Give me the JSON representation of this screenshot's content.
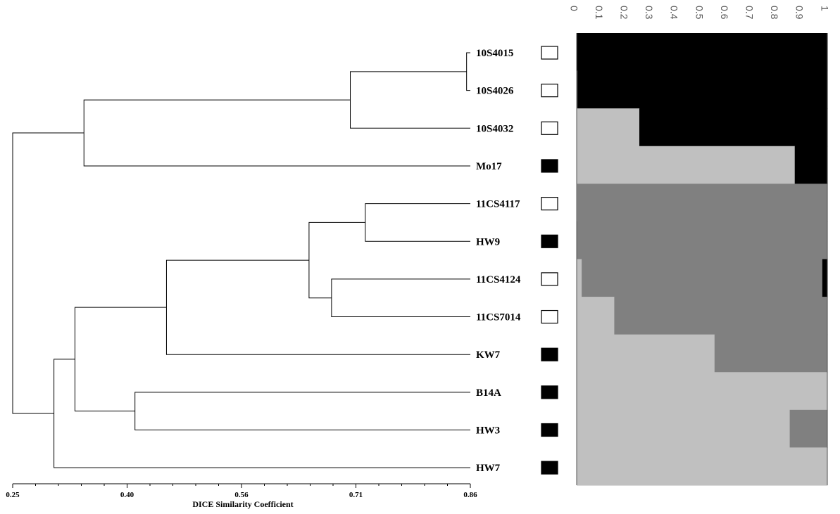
{
  "chart_data": [
    {
      "type": "dendrogram",
      "xlabel": "DICE Similarity Coefficient",
      "xlim": [
        0.25,
        0.86
      ],
      "ticks": [
        "0.25",
        "0.40",
        "0.56",
        "0.71",
        "0.86"
      ],
      "leaves": [
        {
          "label": "10S4015",
          "marker": "open"
        },
        {
          "label": "10S4026",
          "marker": "open"
        },
        {
          "label": "10S4032",
          "marker": "open"
        },
        {
          "label": "Mo17",
          "marker": "filled"
        },
        {
          "label": "11CS4117",
          "marker": "open"
        },
        {
          "label": "HW9",
          "marker": "filled"
        },
        {
          "label": "11CS4124",
          "marker": "open"
        },
        {
          "label": "11CS7014",
          "marker": "open"
        },
        {
          "label": "KW7",
          "marker": "filled"
        },
        {
          "label": "B14A",
          "marker": "filled"
        },
        {
          "label": "HW3",
          "marker": "filled"
        },
        {
          "label": "HW7",
          "marker": "filled"
        }
      ],
      "merges": [
        {
          "a": "L0",
          "b": "L1",
          "height": 0.855,
          "id": "n1"
        },
        {
          "a": "n1",
          "b": "L2",
          "height": 0.7,
          "id": "n2"
        },
        {
          "a": "n2",
          "b": "L3",
          "height": 0.345,
          "id": "n3"
        },
        {
          "a": "L4",
          "b": "L5",
          "height": 0.72,
          "id": "n4"
        },
        {
          "a": "L6",
          "b": "L7",
          "height": 0.675,
          "id": "n5"
        },
        {
          "a": "n4",
          "b": "n5",
          "height": 0.645,
          "id": "n6"
        },
        {
          "a": "n6",
          "b": "L8",
          "height": 0.455,
          "id": "n7"
        },
        {
          "a": "L9",
          "b": "L10",
          "height": 0.413,
          "id": "n8"
        },
        {
          "a": "n7",
          "b": "n8",
          "height": 0.333,
          "id": "n9"
        },
        {
          "a": "n9",
          "b": "L11",
          "height": 0.305,
          "id": "n10"
        },
        {
          "a": "n3",
          "b": "n10",
          "height": 0.25,
          "id": "n11"
        }
      ]
    },
    {
      "type": "stacked-bar",
      "orientation": "horizontal",
      "xlim": [
        0,
        1
      ],
      "ticks": [
        "0",
        "0.1",
        "0.2",
        "0.3",
        "0.4",
        "0.5",
        "0.6",
        "0.7",
        "0.8",
        "0.9",
        "1"
      ],
      "series_colors": [
        "#c0c0c0",
        "#808080",
        "#000000"
      ],
      "categories": [
        "10S4015",
        "10S4026",
        "10S4032",
        "Mo17",
        "11CS4117",
        "HW9",
        "11CS4124",
        "11CS7014",
        "KW7",
        "B14A",
        "HW3",
        "HW7"
      ],
      "series": [
        {
          "values": [
            0.0,
            0.0,
            0.25,
            0.87,
            0.002,
            0.0,
            0.02,
            0.15,
            0.55,
            1.0,
            0.85,
            1.0
          ]
        },
        {
          "values": [
            0.0,
            0.003,
            0.0,
            0.0,
            0.998,
            1.0,
            0.96,
            0.85,
            0.45,
            0.0,
            0.15,
            0.0
          ]
        },
        {
          "values": [
            1.0,
            0.997,
            0.75,
            0.13,
            0.0,
            0.0,
            0.02,
            0.0,
            0.0,
            0.0,
            0.0,
            0.0
          ]
        }
      ]
    }
  ]
}
